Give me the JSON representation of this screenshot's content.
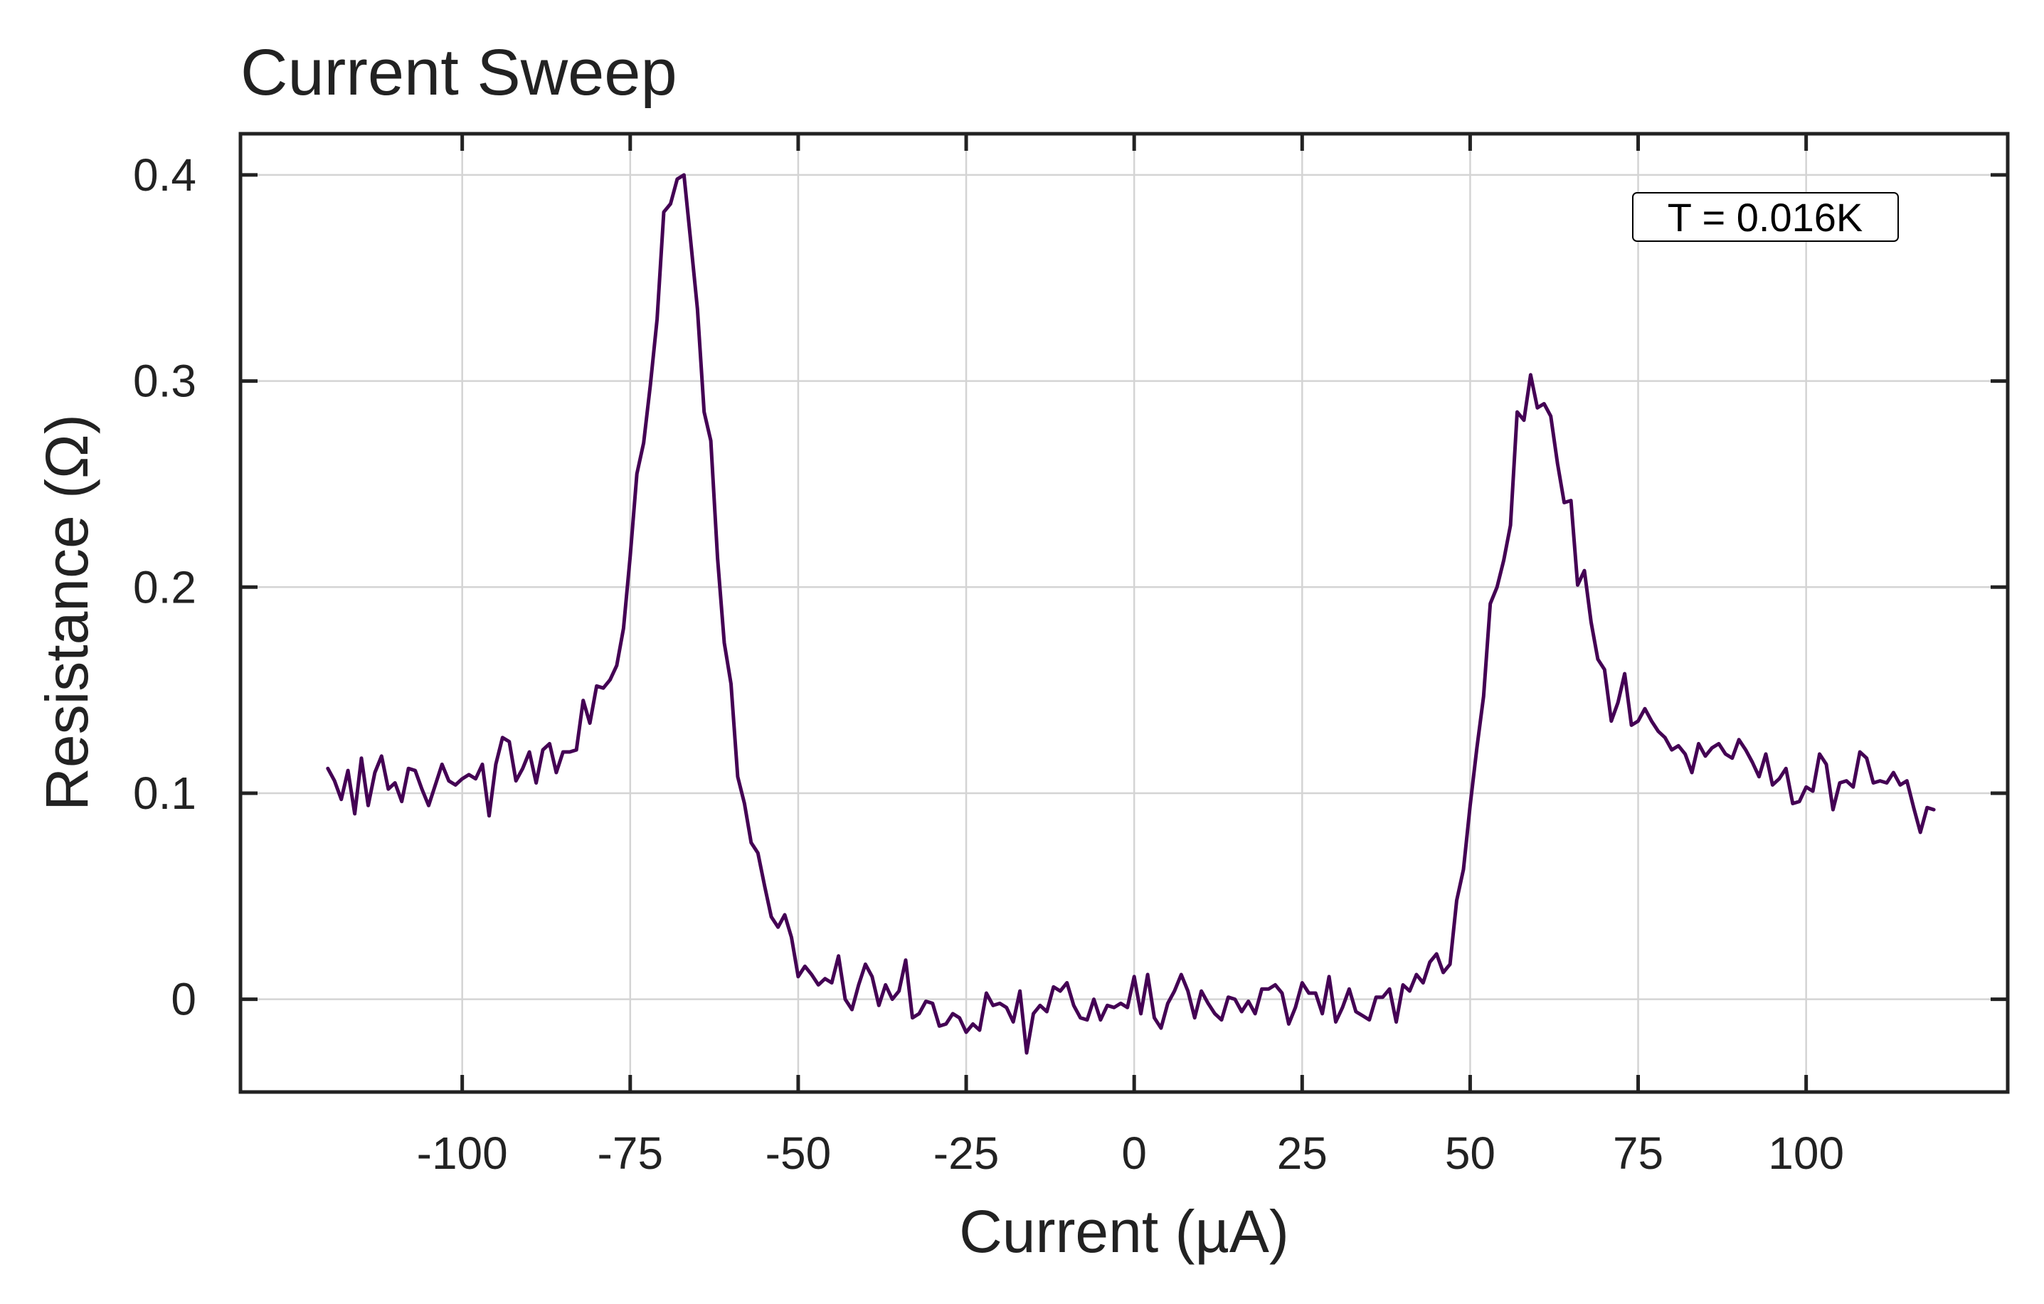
{
  "chart_data": {
    "type": "line",
    "title": "Current Sweep",
    "xlabel": "Current (µA)",
    "ylabel": "Resistance (Ω)",
    "xlim": [
      -133,
      130
    ],
    "ylim": [
      -0.045,
      0.42
    ],
    "xticks": [
      -100,
      -75,
      -50,
      -25,
      0,
      25,
      50,
      75,
      100
    ],
    "yticks": [
      0,
      0.1,
      0.2,
      0.3,
      0.4
    ],
    "xtick_labels": [
      "-100",
      "-75",
      "-50",
      "-25",
      "0",
      "25",
      "50",
      "75",
      "100"
    ],
    "ytick_labels": [
      "0",
      "0.1",
      "0.2",
      "0.3",
      "0.4"
    ],
    "grid": true,
    "annotation": "T = 0.016K",
    "annotation_position": "top-right",
    "line_color": "#440154",
    "series": [
      {
        "x": [
          -120,
          -119,
          -118,
          -117,
          -116,
          -115,
          -114,
          -113,
          -112,
          -111,
          -110,
          -109,
          -108,
          -107,
          -106,
          -105,
          -104,
          -103,
          -102,
          -101,
          -100,
          -99,
          -98,
          -97,
          -96,
          -95,
          -94,
          -93,
          -92,
          -91,
          -90,
          -89,
          -88,
          -87,
          -86,
          -85,
          -84,
          -83,
          -82,
          -81,
          -80,
          -79,
          -78,
          -77,
          -76,
          -75,
          -74,
          -73,
          -72,
          -71,
          -70,
          -69,
          -68,
          -67,
          -66,
          -65,
          -64,
          -63,
          -62,
          -61,
          -60,
          -59,
          -58,
          -57,
          -56,
          -55,
          -54,
          -53,
          -52,
          -51,
          -50,
          -49,
          -48,
          -47,
          -46,
          -45,
          -44,
          -43,
          -42,
          -41,
          -40,
          -39,
          -38,
          -37,
          -36,
          -35,
          -34,
          -33,
          -32,
          -31,
          -30,
          -29,
          -28,
          -27,
          -26,
          -25,
          -24,
          -23,
          -22,
          -21,
          -20,
          -19,
          -18,
          -17,
          -16,
          -15,
          -14,
          -13,
          -12,
          -11,
          -10,
          -9,
          -8,
          -7,
          -6,
          -5,
          -4,
          -3,
          -2,
          -1,
          0,
          1,
          2,
          3,
          4,
          5,
          6,
          7,
          8,
          9,
          10,
          11,
          12,
          13,
          14,
          15,
          16,
          17,
          18,
          19,
          20,
          21,
          22,
          23,
          24,
          25,
          26,
          27,
          28,
          29,
          30,
          31,
          32,
          33,
          34,
          35,
          36,
          37,
          38,
          39,
          40,
          41,
          42,
          43,
          44,
          45,
          46,
          47,
          48,
          49,
          50,
          51,
          52,
          53,
          54,
          55,
          56,
          57,
          58,
          59,
          60,
          61,
          62,
          63,
          64,
          65,
          66,
          67,
          68,
          69,
          70,
          71,
          72,
          73,
          74,
          75,
          76,
          77,
          78,
          79,
          80,
          81,
          82,
          83,
          84,
          85,
          86,
          87,
          88,
          89,
          90,
          91,
          92,
          93,
          94,
          95,
          96,
          97,
          98,
          99,
          100,
          101,
          102,
          103,
          104,
          105,
          106,
          107,
          108,
          109,
          110,
          111,
          112,
          113,
          114,
          115,
          116,
          117,
          118,
          119
        ],
        "y": [
          0.112,
          0.106,
          0.097,
          0.111,
          0.09,
          0.117,
          0.094,
          0.11,
          0.118,
          0.102,
          0.105,
          0.096,
          0.112,
          0.111,
          0.102,
          0.094,
          0.104,
          0.114,
          0.106,
          0.104,
          0.107,
          0.109,
          0.107,
          0.114,
          0.089,
          0.114,
          0.127,
          0.125,
          0.106,
          0.112,
          0.12,
          0.105,
          0.121,
          0.124,
          0.11,
          0.12,
          0.12,
          0.121,
          0.145,
          0.134,
          0.152,
          0.151,
          0.155,
          0.162,
          0.18,
          0.215,
          0.255,
          0.27,
          0.298,
          0.33,
          0.382,
          0.386,
          0.398,
          0.4,
          0.368,
          0.335,
          0.285,
          0.271,
          0.214,
          0.173,
          0.153,
          0.108,
          0.095,
          0.076,
          0.071,
          0.055,
          0.04,
          0.035,
          0.041,
          0.03,
          0.011,
          0.016,
          0.012,
          0.007,
          0.01,
          0.008,
          0.021,
          -0.0,
          -0.005,
          0.007,
          0.017,
          0.011,
          -0.003,
          0.007,
          0.0,
          0.004,
          0.019,
          -0.009,
          -0.007,
          -0.001,
          -0.002,
          -0.013,
          -0.012,
          -0.007,
          -0.009,
          -0.016,
          -0.012,
          -0.015,
          0.003,
          -0.003,
          -0.002,
          -0.004,
          -0.011,
          0.004,
          -0.026,
          -0.007,
          -0.003,
          -0.006,
          0.006,
          0.004,
          0.008,
          -0.003,
          -0.009,
          -0.01,
          -0.0,
          -0.01,
          -0.003,
          -0.004,
          -0.002,
          -0.004,
          0.011,
          -0.007,
          0.012,
          -0.009,
          -0.014,
          -0.002,
          0.004,
          0.012,
          0.004,
          -0.009,
          0.004,
          -0.002,
          -0.007,
          -0.01,
          0.001,
          -0.0,
          -0.006,
          -0.001,
          -0.007,
          0.005,
          0.005,
          0.007,
          0.003,
          -0.012,
          -0.004,
          0.008,
          0.003,
          0.003,
          -0.007,
          0.011,
          -0.011,
          -0.004,
          0.005,
          -0.006,
          -0.008,
          -0.01,
          0.001,
          0.001,
          0.005,
          -0.011,
          0.007,
          0.004,
          0.012,
          0.008,
          0.018,
          0.022,
          0.013,
          0.017,
          0.048,
          0.063,
          0.094,
          0.122,
          0.147,
          0.192,
          0.2,
          0.213,
          0.23,
          0.285,
          0.281,
          0.303,
          0.287,
          0.289,
          0.283,
          0.26,
          0.241,
          0.242,
          0.201,
          0.208,
          0.183,
          0.165,
          0.16,
          0.135,
          0.144,
          0.158,
          0.133,
          0.135,
          0.141,
          0.135,
          0.13,
          0.127,
          0.121,
          0.123,
          0.119,
          0.11,
          0.124,
          0.118,
          0.122,
          0.124,
          0.119,
          0.117,
          0.126,
          0.121,
          0.115,
          0.108,
          0.119,
          0.104,
          0.107,
          0.112,
          0.095,
          0.096,
          0.103,
          0.101,
          0.119,
          0.114,
          0.092,
          0.105,
          0.106,
          0.103,
          0.12,
          0.117,
          0.105,
          0.106,
          0.105,
          0.11,
          0.104,
          0.106,
          0.093,
          0.081,
          0.093,
          0.092
        ]
      }
    ]
  }
}
